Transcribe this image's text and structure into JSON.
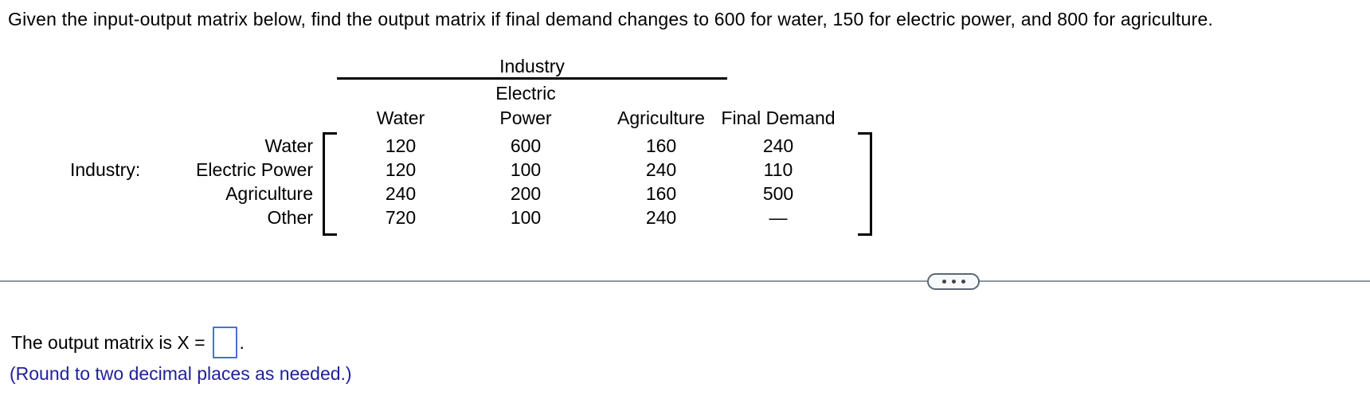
{
  "problem": {
    "statement": "Given the input-output matrix below, find the output matrix if final demand changes to 600 for water, 150 for electric power, and 800 for agriculture."
  },
  "matrix": {
    "group_header": "Industry",
    "side_label": "Industry:",
    "column_headers": [
      {
        "line1": "",
        "line2": "Water"
      },
      {
        "line1": "Electric",
        "line2": "Power"
      },
      {
        "line1": "",
        "line2": "Agriculture"
      },
      {
        "line1": "",
        "line2": "Final Demand"
      }
    ],
    "rows": [
      {
        "label": "Water",
        "values": [
          "120",
          "600",
          "160",
          "240"
        ]
      },
      {
        "label": "Electric Power",
        "values": [
          "120",
          "100",
          "240",
          "110"
        ]
      },
      {
        "label": "Agriculture",
        "values": [
          "240",
          "200",
          "160",
          "500"
        ]
      },
      {
        "label": "Other",
        "values": [
          "720",
          "100",
          "240",
          "—"
        ]
      }
    ]
  },
  "answer": {
    "prefix": "The output matrix is X =",
    "input_value": "",
    "suffix": ".",
    "note": "(Round to two decimal places as needed.)"
  },
  "icons": {
    "ellipsis_button": "ellipsis-icon"
  },
  "colors": {
    "text": "#000000",
    "note_text": "#21219e",
    "answer_box_border": "#4b6fd6",
    "divider": "#8e96a2",
    "pill_border": "#5d6773",
    "pill_background": "#f8f9fa"
  }
}
